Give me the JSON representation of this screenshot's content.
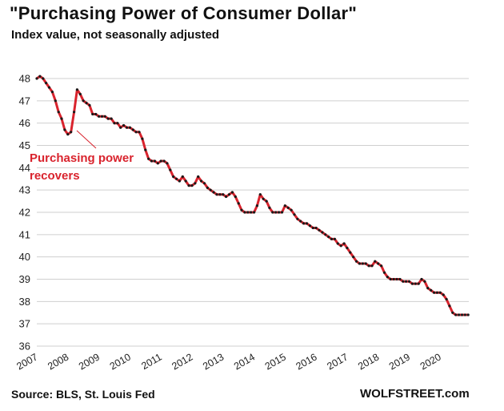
{
  "header": {
    "title": "\"Purchasing  Power of Consumer Dollar\"",
    "subtitle": "Index value, not seasonally adjusted"
  },
  "footer": {
    "source": "Source: BLS, St. Louis Fed",
    "brand": "WOLFSTREET.com"
  },
  "colors": {
    "line": "#d9232d",
    "markers": "#1a1a1a",
    "grid": "#cfcfcf",
    "annotation": "#d9232d"
  },
  "chart_data": {
    "type": "line",
    "title": "\"Purchasing  Power of Consumer Dollar\"",
    "subtitle": "Index value, not seasonally adjusted",
    "xlabel": "",
    "ylabel": "",
    "ylim": [
      36,
      48
    ],
    "xlim": [
      2007.0,
      2020.92
    ],
    "grid": "horizontal",
    "y_ticks": [
      "36",
      "37",
      "38",
      "39",
      "40",
      "41",
      "42",
      "43",
      "44",
      "45",
      "46",
      "47",
      "48"
    ],
    "x_ticks": [
      "2007",
      "2008",
      "2009",
      "2010",
      "2011",
      "2012",
      "2013",
      "2014",
      "2015",
      "2016",
      "2017",
      "2018",
      "2019",
      "2020"
    ],
    "annotations": [
      {
        "lines": [
          "Purchasing power",
          "recovers"
        ],
        "points_to": {
          "x": 2008.42,
          "y": 45.6
        }
      }
    ],
    "series": [
      {
        "x": [
          2007.0,
          2007.1,
          2007.2,
          2007.3,
          2007.4,
          2007.5,
          2007.6,
          2007.7,
          2007.8,
          2007.9,
          2008.0,
          2008.1,
          2008.2,
          2008.3,
          2008.4,
          2008.5,
          2008.6,
          2008.7,
          2008.8,
          2008.9,
          2009.0,
          2009.1,
          2009.2,
          2009.3,
          2009.4,
          2009.5,
          2009.6,
          2009.7,
          2009.8,
          2009.9,
          2010.0,
          2010.1,
          2010.2,
          2010.3,
          2010.4,
          2010.5,
          2010.6,
          2010.7,
          2010.8,
          2010.9,
          2011.0,
          2011.1,
          2011.2,
          2011.3,
          2011.4,
          2011.5,
          2011.6,
          2011.7,
          2011.8,
          2011.9,
          2012.0,
          2012.1,
          2012.2,
          2012.3,
          2012.4,
          2012.5,
          2012.6,
          2012.7,
          2012.8,
          2012.9,
          2013.0,
          2013.1,
          2013.2,
          2013.3,
          2013.4,
          2013.5,
          2013.6,
          2013.7,
          2013.8,
          2013.9,
          2014.0,
          2014.1,
          2014.2,
          2014.3,
          2014.4,
          2014.5,
          2014.6,
          2014.7,
          2014.8,
          2014.9,
          2015.0,
          2015.1,
          2015.2,
          2015.3,
          2015.4,
          2015.5,
          2015.6,
          2015.7,
          2015.8,
          2015.9,
          2016.0,
          2016.1,
          2016.2,
          2016.3,
          2016.4,
          2016.5,
          2016.6,
          2016.7,
          2016.8,
          2016.9,
          2017.0,
          2017.1,
          2017.2,
          2017.3,
          2017.4,
          2017.5,
          2017.6,
          2017.7,
          2017.8,
          2017.9,
          2018.0,
          2018.1,
          2018.2,
          2018.3,
          2018.4,
          2018.5,
          2018.6,
          2018.7,
          2018.8,
          2018.9,
          2019.0,
          2019.1,
          2019.2,
          2019.3,
          2019.4,
          2019.5,
          2019.6,
          2019.7,
          2019.8,
          2019.9,
          2020.0,
          2020.1,
          2020.2,
          2020.3,
          2020.4,
          2020.5,
          2020.6,
          2020.7,
          2020.8,
          2020.9
        ],
        "values": [
          48.0,
          48.1,
          48.0,
          47.8,
          47.6,
          47.4,
          47.0,
          46.5,
          46.2,
          45.7,
          45.5,
          45.6,
          46.5,
          47.5,
          47.3,
          47.0,
          46.9,
          46.8,
          46.4,
          46.4,
          46.3,
          46.3,
          46.3,
          46.2,
          46.2,
          46.0,
          46.0,
          45.8,
          45.9,
          45.8,
          45.8,
          45.7,
          45.6,
          45.6,
          45.3,
          44.8,
          44.4,
          44.3,
          44.3,
          44.2,
          44.3,
          44.3,
          44.2,
          43.9,
          43.6,
          43.5,
          43.4,
          43.6,
          43.4,
          43.2,
          43.2,
          43.3,
          43.6,
          43.4,
          43.3,
          43.1,
          43.0,
          42.9,
          42.8,
          42.8,
          42.8,
          42.7,
          42.8,
          42.9,
          42.7,
          42.4,
          42.1,
          42.0,
          42.0,
          42.0,
          42.0,
          42.3,
          42.8,
          42.6,
          42.5,
          42.2,
          42.0,
          42.0,
          42.0,
          42.0,
          42.3,
          42.2,
          42.1,
          41.9,
          41.7,
          41.6,
          41.5,
          41.5,
          41.4,
          41.3,
          41.3,
          41.2,
          41.1,
          41.0,
          40.9,
          40.8,
          40.8,
          40.6,
          40.5,
          40.6,
          40.4,
          40.2,
          40.0,
          39.8,
          39.7,
          39.7,
          39.7,
          39.6,
          39.6,
          39.8,
          39.7,
          39.6,
          39.3,
          39.1,
          39.0,
          39.0,
          39.0,
          39.0,
          38.9,
          38.9,
          38.9,
          38.8,
          38.8,
          38.8,
          39.0,
          38.9,
          38.6,
          38.5,
          38.4,
          38.4,
          38.4,
          38.3,
          38.1,
          37.8,
          37.5,
          37.4,
          37.4,
          37.4,
          37.4,
          37.4
        ]
      }
    ]
  }
}
